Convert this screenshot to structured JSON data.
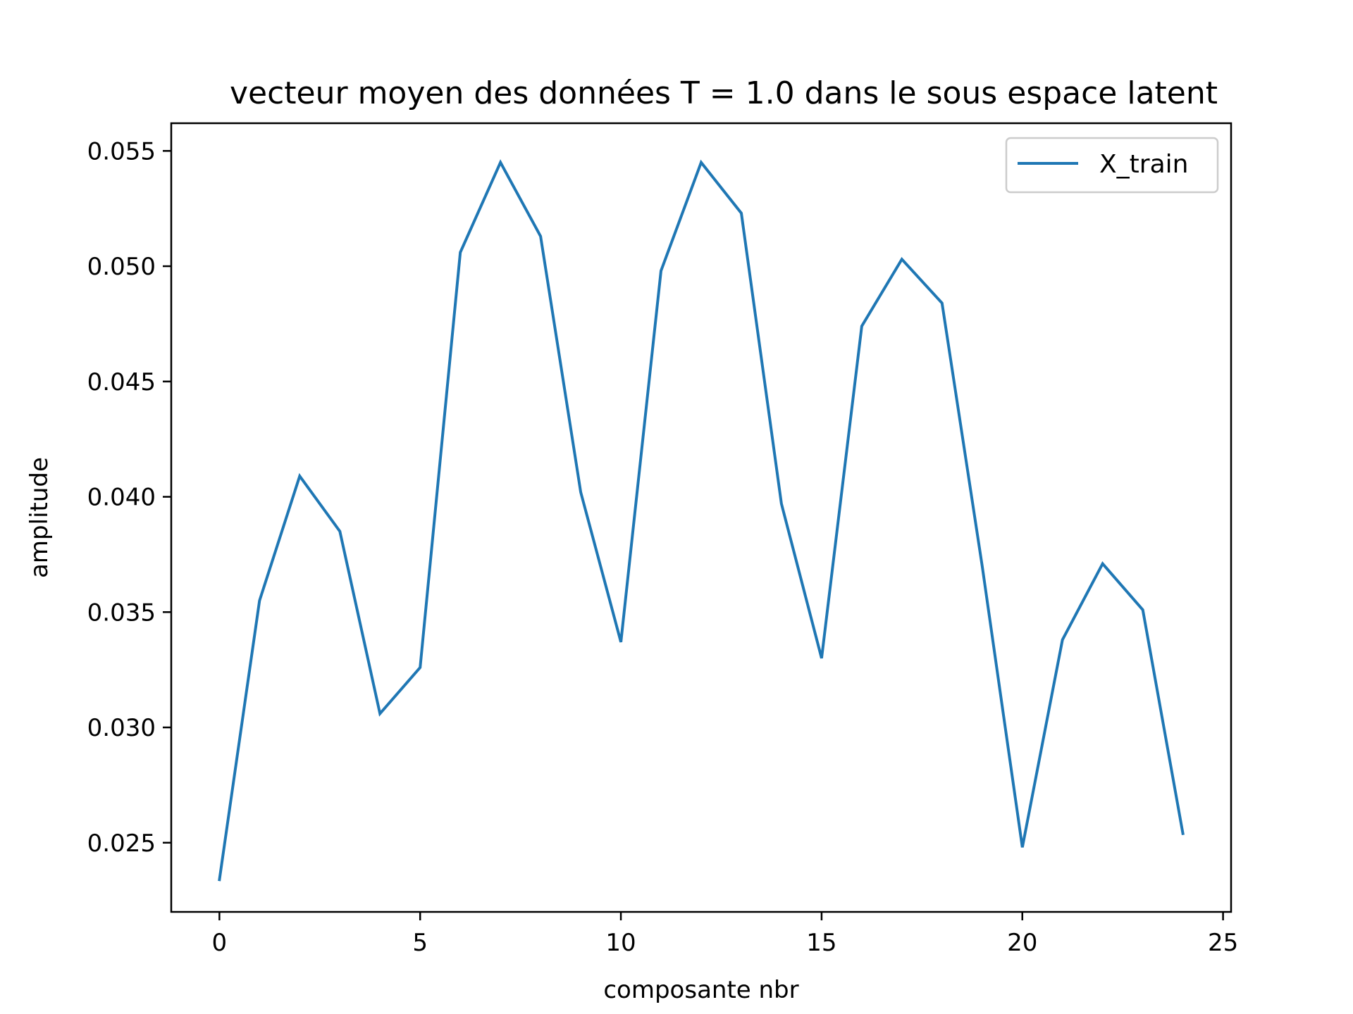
{
  "chart_data": {
    "type": "line",
    "title": "vecteur moyen des données T = 1.0 dans le sous espace latent",
    "xlabel": "composante nbr",
    "ylabel": "amplitude",
    "xlim": [
      -1.2,
      25.2
    ],
    "ylim": [
      0.022,
      0.0562
    ],
    "x_ticks": [
      0,
      5,
      10,
      15,
      20,
      25
    ],
    "x_tick_labels": [
      "0",
      "5",
      "10",
      "15",
      "20",
      "25"
    ],
    "y_ticks": [
      0.025,
      0.03,
      0.035,
      0.04,
      0.045,
      0.05,
      0.055
    ],
    "y_tick_labels": [
      "0.025",
      "0.030",
      "0.035",
      "0.040",
      "0.045",
      "0.050",
      "0.055"
    ],
    "grid": false,
    "legend_position": "top-right",
    "series": [
      {
        "name": "X_train",
        "color": "#1f77b4",
        "x": [
          0,
          1,
          2,
          3,
          4,
          5,
          6,
          7,
          8,
          9,
          10,
          11,
          12,
          13,
          14,
          15,
          16,
          17,
          18,
          19,
          20,
          21,
          22,
          23,
          24
        ],
        "values": [
          0.0234,
          0.0355,
          0.0409,
          0.0385,
          0.0306,
          0.0326,
          0.0506,
          0.0545,
          0.0513,
          0.0402,
          0.0337,
          0.0498,
          0.0545,
          0.0523,
          0.0397,
          0.033,
          0.0474,
          0.0503,
          0.0484,
          0.037,
          0.0248,
          0.0338,
          0.0371,
          0.0351,
          0.0254
        ]
      }
    ]
  }
}
